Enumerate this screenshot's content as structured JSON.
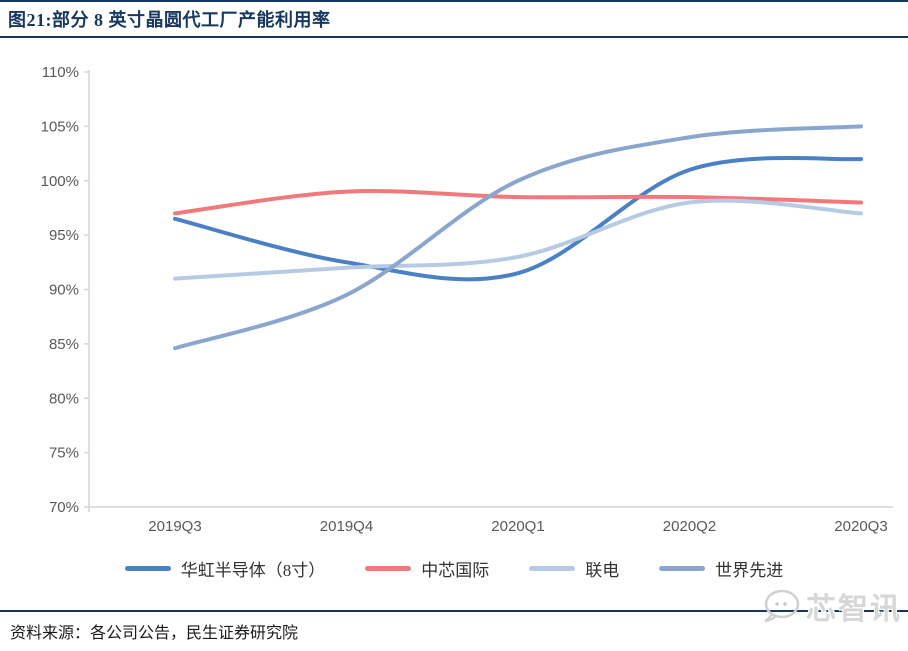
{
  "figure": {
    "title": "图21:部分 8 英寸晶圆代工厂产能利用率",
    "source": "资料来源：各公司公告，民生证券研究院",
    "watermark": "芯智讯"
  },
  "colors": {
    "title": "#17375E",
    "divider": "#17375E",
    "axis_line": "#D6D6D6",
    "tick_label": "#595959",
    "legend_label": "#333333",
    "watermark": "#D7D7D7",
    "series": [
      "#4A81C5",
      "#F0797C",
      "#B7CAE3",
      "#8AA6CF"
    ]
  },
  "chart_data": {
    "type": "line",
    "smooth": true,
    "grid": false,
    "legend_position": "bottom",
    "x": [
      "2019Q3",
      "2019Q4",
      "2020Q1",
      "2020Q2",
      "2020Q3"
    ],
    "series": [
      {
        "name": "华虹半导体（8寸）",
        "color": "#4A81C5",
        "values": [
          96.5,
          92.5,
          91.5,
          101,
          102
        ]
      },
      {
        "name": "中芯国际",
        "color": "#F0797C",
        "values": [
          97,
          99,
          98.5,
          98.5,
          98
        ]
      },
      {
        "name": "联电",
        "color": "#B7CAE3",
        "values": [
          91,
          92,
          93,
          98,
          97
        ]
      },
      {
        "name": "世界先进",
        "color": "#8AA6CF",
        "values": [
          84.6,
          89.5,
          100,
          104,
          105
        ]
      }
    ],
    "ylim": [
      70,
      110
    ],
    "yticks": {
      "values": [
        110,
        105,
        100,
        95,
        90,
        85,
        80,
        75,
        70
      ],
      "labels": [
        "110%",
        "105%",
        "100%",
        "95%",
        "90%",
        "85%",
        "80%",
        "75%",
        "70%"
      ]
    },
    "xlabel": "",
    "ylabel": ""
  }
}
